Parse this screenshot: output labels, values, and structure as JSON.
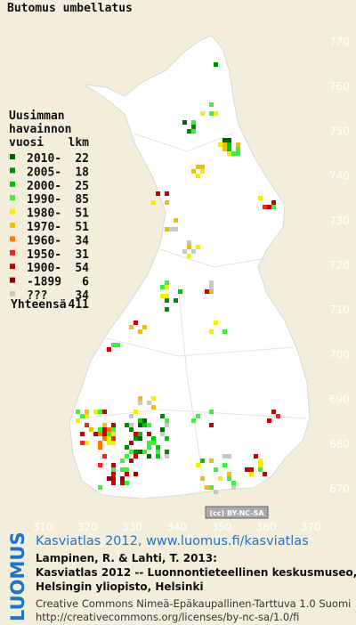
{
  "title": "Butomus umbellatus",
  "legend": {
    "heading": [
      "Uusimman",
      "havainnon"
    ],
    "columns": [
      "vuosi",
      "lkm"
    ],
    "rows": [
      {
        "label": "2010-",
        "count": 22,
        "color": "#006400"
      },
      {
        "label": "2005-",
        "count": 18,
        "color": "#008c00"
      },
      {
        "label": "2000-",
        "count": 25,
        "color": "#00c800"
      },
      {
        "label": "1990-",
        "count": 85,
        "color": "#3cf03c"
      },
      {
        "label": "1980-",
        "count": 51,
        "color": "#f0f000"
      },
      {
        "label": "1970-",
        "count": 51,
        "color": "#f0c000"
      },
      {
        "label": "1960-",
        "count": 34,
        "color": "#ff7800"
      },
      {
        "label": "1950-",
        "count": 31,
        "color": "#ff1e1e"
      },
      {
        "label": "1900-",
        "count": 54,
        "color": "#c80000"
      },
      {
        "label": "-1899",
        "count": 6,
        "color": "#8c0000"
      },
      {
        "label": "???",
        "count": 34,
        "color": "#c8c8c8"
      }
    ],
    "total_label": "Yhteensä",
    "total": 411
  },
  "axes": {
    "xticks": [
      310,
      320,
      330,
      340,
      350,
      360,
      370
    ],
    "yticks": [
      670,
      680,
      690,
      700,
      710,
      720,
      730,
      740,
      750,
      760,
      770
    ]
  },
  "badge": "(cc) BY-NC-SA",
  "logo": "LUOMUS",
  "credits": {
    "site": "Kasviatlas 2012, www.luomus.fi/kasviatlas",
    "citation": [
      "Lampinen, R. & Lahti, T. 2013:",
      "Kasviatlas 2012 -- Luonnontieteellinen keskusmuseo,",
      "Helsingin yliopisto, Helsinki"
    ],
    "license": [
      "Creative Commons Nimeä-Epäkaupallinen-Tarttuva 1.0 Suomi",
      "http://creativecommons.org/licenses/by-nc-sa/1.0/fi"
    ]
  }
}
